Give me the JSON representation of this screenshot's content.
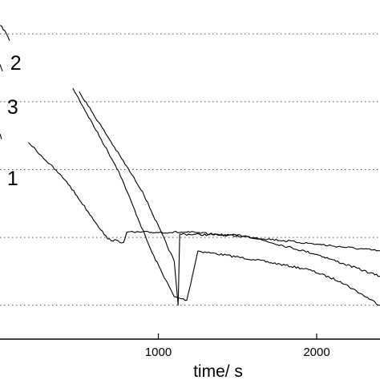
{
  "chart_data": {
    "type": "line",
    "title": "",
    "xlabel": "time/ s",
    "ylabel": "",
    "xlim": [
      0,
      2400
    ],
    "ylim": [
      0,
      1
    ],
    "grid": "horizontal dotted",
    "legend": "none",
    "xticks": [
      {
        "value": 1000,
        "label": "1000"
      },
      {
        "value": 2000,
        "label": "2000"
      }
    ],
    "yticks": [
      0.1,
      0.3,
      0.5,
      0.7,
      0.9
    ],
    "annotations": [
      {
        "text": "2",
        "x": 100,
        "y": 0.81
      },
      {
        "text": "3",
        "x": 80,
        "y": 0.68
      },
      {
        "text": "1",
        "x": 80,
        "y": 0.47
      }
    ],
    "series": [
      {
        "x": [
          0,
          30,
          60
        ],
        "y": [
          0.925,
          0.91,
          0.88
        ]
      },
      {
        "x": [
          0,
          15
        ],
        "y": [
          0.81,
          0.79
        ]
      },
      {
        "x": [
          0,
          10
        ],
        "y": [
          0.605,
          0.59
        ]
      },
      {
        "x": [
          460,
          750,
          960,
          1100,
          1180,
          1250,
          1600,
          1950,
          2150,
          2400
        ],
        "y": [
          0.74,
          0.495,
          0.255,
          0.125,
          0.115,
          0.26,
          0.235,
          0.205,
          0.17,
          0.1
        ]
      },
      {
        "x": [
          500,
          900,
          1100,
          1125,
          1135,
          1550,
          2000,
          2400
        ],
        "y": [
          0.73,
          0.435,
          0.23,
          0.1,
          0.31,
          0.305,
          0.25,
          0.185
        ]
      },
      {
        "x": [
          180,
          420,
          680,
          780,
          800,
          1200,
          1600,
          2000,
          2400
        ],
        "y": [
          0.58,
          0.465,
          0.295,
          0.285,
          0.315,
          0.315,
          0.3,
          0.28,
          0.26
        ]
      }
    ]
  }
}
